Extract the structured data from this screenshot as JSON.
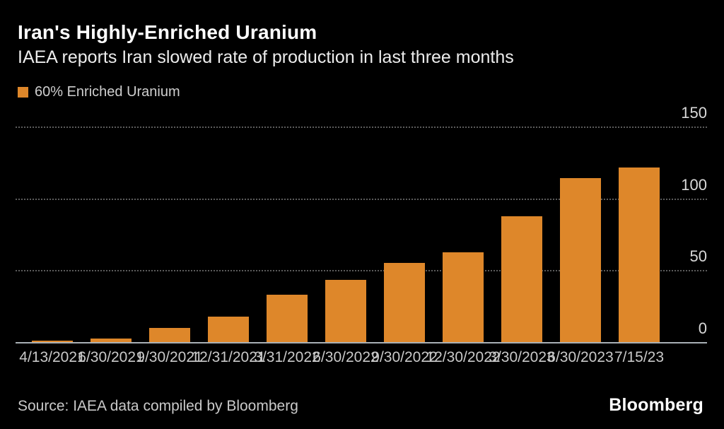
{
  "header": {
    "title": "Iran's Highly-Enriched Uranium",
    "subtitle": "IAEA reports Iran slowed rate of production in last three months"
  },
  "legend": {
    "label": "60% Enriched Uranium",
    "swatch_color": "#de872a"
  },
  "chart_data": {
    "type": "bar",
    "title": "Iran's Highly-Enriched Uranium",
    "subtitle": "IAEA reports Iran slowed rate of production in last three months",
    "legend_entries": [
      "60% Enriched Uranium"
    ],
    "categories": [
      "4/13/2021",
      "6/30/2021",
      "9/30/2021",
      "12/31/2021",
      "3/31/2022",
      "6/30/2022",
      "9/30/2022",
      "12/30/2022",
      "3/30/2023",
      "6/30/2023",
      "7/15/23"
    ],
    "values": [
      1,
      2.4,
      10,
      17.7,
      33.2,
      43.1,
      55.2,
      62.3,
      87.5,
      114.1,
      121.6
    ],
    "ylim": [
      0,
      150
    ],
    "yticks": [
      0,
      50,
      100,
      150
    ],
    "ytick_side": "right",
    "grid": "horizontal-dotted",
    "bar_color": "#de872a",
    "background_color": "#000000"
  },
  "footer": {
    "source": "Source: IAEA data compiled by Bloomberg",
    "brand": "Bloomberg"
  }
}
